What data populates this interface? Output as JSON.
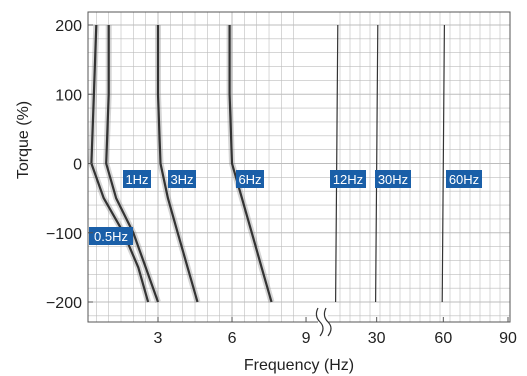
{
  "chart_data": {
    "type": "line",
    "title": "",
    "xlabel": "Frequency (Hz)",
    "ylabel": "Torque (%)",
    "ylim": [
      -220,
      220
    ],
    "x_axis": {
      "segments": [
        {
          "range": [
            0,
            9
          ],
          "ticks": [
            3,
            6,
            9
          ]
        },
        {
          "range": [
            9,
            90
          ],
          "ticks": [
            30,
            60,
            90
          ],
          "note": "axis break between 9 and 30"
        }
      ],
      "tick_labels": [
        "3",
        "6",
        "9",
        "30",
        "60",
        "90"
      ]
    },
    "y_axis": {
      "ticks": [
        200,
        100,
        0,
        -100,
        -200
      ],
      "tick_labels": [
        "200",
        "100",
        "0",
        "−100",
        "−200"
      ]
    },
    "grid": true,
    "series": [
      {
        "name": "0.5Hz",
        "points": [
          [
            0.5,
            200
          ],
          [
            0.4,
            100
          ],
          [
            0.3,
            0
          ],
          [
            0.8,
            -50
          ],
          [
            1.6,
            -100
          ],
          [
            2.2,
            -150
          ],
          [
            2.6,
            -200
          ]
        ]
      },
      {
        "name": "1Hz",
        "points": [
          [
            1.0,
            200
          ],
          [
            1.0,
            100
          ],
          [
            0.9,
            0
          ],
          [
            1.3,
            -50
          ],
          [
            2.0,
            -100
          ],
          [
            2.5,
            -150
          ],
          [
            3.0,
            -200
          ]
        ]
      },
      {
        "name": "3Hz",
        "points": [
          [
            3.0,
            200
          ],
          [
            3.0,
            100
          ],
          [
            3.1,
            0
          ],
          [
            3.4,
            -50
          ],
          [
            3.8,
            -100
          ],
          [
            4.2,
            -150
          ],
          [
            4.6,
            -200
          ]
        ]
      },
      {
        "name": "6Hz",
        "points": [
          [
            5.9,
            200
          ],
          [
            5.9,
            100
          ],
          [
            6.0,
            0
          ],
          [
            6.4,
            -50
          ],
          [
            6.8,
            -100
          ],
          [
            7.2,
            -150
          ],
          [
            7.6,
            -200
          ]
        ]
      },
      {
        "name": "12Hz",
        "points": [
          [
            12.5,
            200
          ],
          [
            12.0,
            0
          ],
          [
            11.5,
            -200
          ]
        ]
      },
      {
        "name": "30Hz",
        "points": [
          [
            30.5,
            200
          ],
          [
            30.0,
            0
          ],
          [
            29.5,
            -200
          ]
        ]
      },
      {
        "name": "60Hz",
        "points": [
          [
            60.5,
            200
          ],
          [
            60.0,
            0
          ],
          [
            59.5,
            -200
          ]
        ]
      }
    ],
    "labels": [
      "0.5Hz",
      "1Hz",
      "3Hz",
      "6Hz",
      "12Hz",
      "30Hz",
      "60Hz"
    ],
    "label_color": "#1a5fa8",
    "line_color": "#333333",
    "grid_color": "#bdbdbd"
  }
}
